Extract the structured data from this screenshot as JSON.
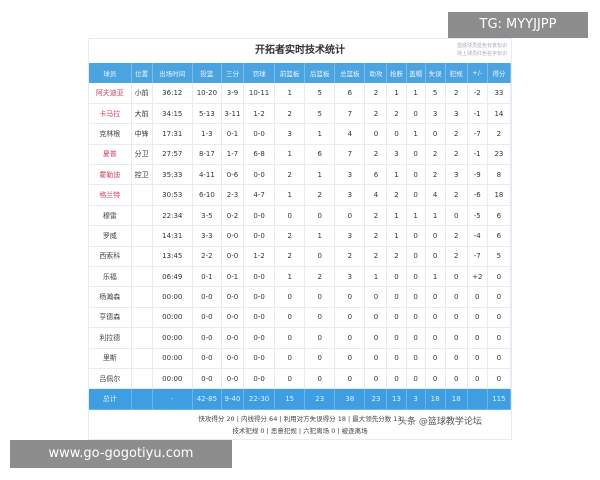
{
  "title": "开拓者实时技术统计",
  "note": [
    "蓝底球员蓝色背景标识",
    "场上球员红色名字标识"
  ],
  "columns": [
    "球员",
    "位置",
    "出场时间",
    "投篮",
    "三分",
    "罚球",
    "前篮板",
    "后篮板",
    "总篮板",
    "助攻",
    "抢断",
    "盖帽",
    "失误",
    "犯规",
    "+/-",
    "得分"
  ],
  "rows": [
    [
      "阿夫迪亚",
      "小前",
      "36:12",
      "10-20",
      "3-9",
      "10-11",
      "1",
      "5",
      "6",
      "2",
      "1",
      "1",
      "5",
      "2",
      "-2",
      "33"
    ],
    [
      "卡马拉",
      "大前",
      "34:15",
      "5-13",
      "3-11",
      "1-2",
      "2",
      "5",
      "7",
      "2",
      "2",
      "0",
      "3",
      "3",
      "-1",
      "14"
    ],
    [
      "克林根",
      "中锋",
      "17:31",
      "1-3",
      "0-1",
      "0-0",
      "3",
      "1",
      "4",
      "0",
      "0",
      "1",
      "0",
      "2",
      "-7",
      "2"
    ],
    [
      "夏普",
      "分卫",
      "27:57",
      "8-17",
      "1-7",
      "6-8",
      "1",
      "6",
      "7",
      "2",
      "3",
      "0",
      "2",
      "2",
      "-1",
      "23"
    ],
    [
      "霍勒迪",
      "控卫",
      "35:33",
      "4-11",
      "0-6",
      "0-0",
      "2",
      "1",
      "3",
      "6",
      "1",
      "0",
      "2",
      "3",
      "-9",
      "8"
    ],
    [
      "格兰特",
      "",
      "30:53",
      "6-10",
      "2-3",
      "4-7",
      "1",
      "2",
      "3",
      "4",
      "2",
      "0",
      "4",
      "2",
      "-6",
      "18"
    ],
    [
      "穆雷",
      "",
      "22:34",
      "3-5",
      "0-2",
      "0-0",
      "0",
      "0",
      "0",
      "2",
      "1",
      "1",
      "1",
      "0",
      "-5",
      "6"
    ],
    [
      "罗威",
      "",
      "14:31",
      "3-3",
      "0-0",
      "0-0",
      "2",
      "1",
      "3",
      "2",
      "1",
      "0",
      "0",
      "2",
      "-4",
      "6"
    ],
    [
      "西索科",
      "",
      "13:45",
      "2-2",
      "0-0",
      "1-2",
      "2",
      "0",
      "2",
      "2",
      "2",
      "0",
      "0",
      "2",
      "-7",
      "5"
    ],
    [
      "乐福",
      "",
      "06:49",
      "0-1",
      "0-1",
      "0-0",
      "1",
      "2",
      "3",
      "1",
      "0",
      "0",
      "1",
      "0",
      "+2",
      "0"
    ],
    [
      "杨瀚森",
      "",
      "00:00",
      "0-0",
      "0-0",
      "0-0",
      "0",
      "0",
      "0",
      "0",
      "0",
      "0",
      "0",
      "0",
      "0",
      "0"
    ],
    [
      "亨德森",
      "",
      "00:00",
      "0-0",
      "0-0",
      "0-0",
      "0",
      "0",
      "0",
      "0",
      "0",
      "0",
      "0",
      "0",
      "0",
      "0"
    ],
    [
      "利拉德",
      "",
      "00:00",
      "0-0",
      "0-0",
      "0-0",
      "0",
      "0",
      "0",
      "0",
      "0",
      "0",
      "0",
      "0",
      "0",
      "0"
    ],
    [
      "里斯",
      "",
      "00:00",
      "0-0",
      "0-0",
      "0-0",
      "0",
      "0",
      "0",
      "0",
      "0",
      "0",
      "0",
      "0",
      "0",
      "0"
    ],
    [
      "吕佩尔",
      "",
      "00:00",
      "0-0",
      "0-0",
      "0-0",
      "0",
      "0",
      "0",
      "0",
      "0",
      "0",
      "0",
      "0",
      "0",
      "0"
    ]
  ],
  "red_names": [
    0,
    1,
    3,
    4,
    5
  ],
  "total": [
    "总计",
    "",
    "-",
    "42-85",
    "9-40",
    "22-30",
    "15",
    "23",
    "38",
    "23",
    "13",
    "3",
    "18",
    "18",
    "",
    "115"
  ],
  "footer": [
    "快攻得分 20 | 内线得分 64 | 利用对方失误得分 18 | 最大领先分数 13",
    "技术犯规 0 | 恶意犯规 | 六犯离场 0 | 被逐离场"
  ],
  "watermark": "头条 @篮球教学论坛",
  "tg_label": "TG: MYYJJPP",
  "site_label": "www.go-gogotiyu.com",
  "colors": {
    "header": "#4ba4e0",
    "total": "#3f9ee2",
    "on_court_name": "#d2405c"
  }
}
